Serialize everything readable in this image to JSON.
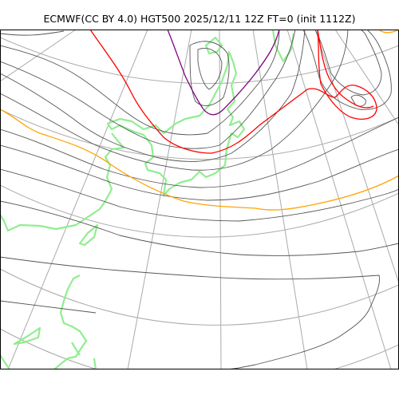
{
  "title": "ECMWF(CC BY 4.0) HGT500 2025/12/11 12Z FT=0 (init 1112Z)",
  "map": {
    "field": "HGT500",
    "colors": {
      "frame": "#000000",
      "graticule": "#aaaaaa",
      "contour": "#555555",
      "coastline": "#90ee90",
      "contour_highlight_orange": "#ffa500",
      "contour_highlight_red": "#ff0000",
      "contour_highlight_purple": "#800080"
    }
  }
}
